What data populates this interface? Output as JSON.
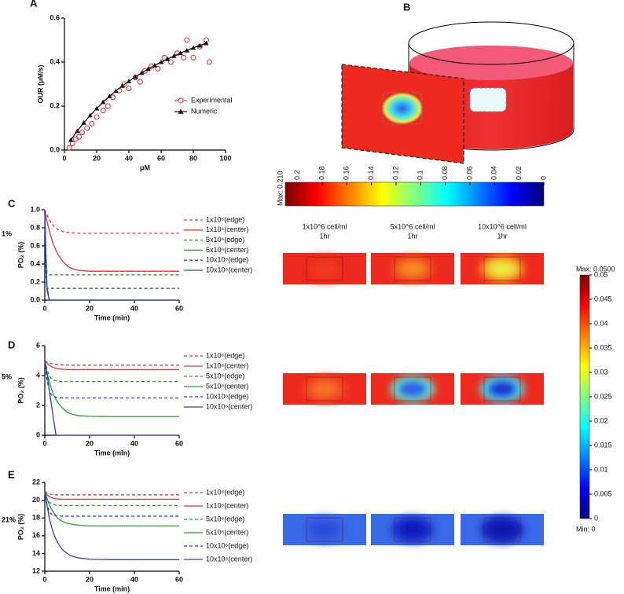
{
  "chart_data": [
    {
      "type": "scatter",
      "panel_label": "A",
      "xlabel": "μM",
      "ylabel": "OUR (μM/s)",
      "xlim": [
        0,
        100
      ],
      "xticks": [
        0,
        20,
        40,
        60,
        80,
        100
      ],
      "ylim": [
        0,
        0.6
      ],
      "yticks": [
        {
          "value": 0,
          "label": "0.0"
        },
        0.2,
        0.4,
        0.6
      ],
      "series": [
        {
          "name": "Experimental",
          "color": "#e8333a",
          "style": "markers",
          "marker": "circle",
          "x": [
            3,
            5,
            7,
            9,
            11,
            14,
            17,
            20,
            24,
            27,
            30,
            34,
            37,
            40,
            44,
            47,
            50,
            54,
            58,
            62,
            66,
            70,
            74,
            76,
            80,
            84,
            88,
            90
          ],
          "values": [
            0.01,
            0.03,
            0.05,
            0.06,
            0.08,
            0.1,
            0.12,
            0.15,
            0.18,
            0.2,
            0.24,
            0.27,
            0.3,
            0.28,
            0.33,
            0.31,
            0.36,
            0.38,
            0.37,
            0.42,
            0.4,
            0.44,
            0.42,
            0.5,
            0.42,
            0.47,
            0.5,
            0.4
          ]
        },
        {
          "name": "Numeric",
          "color": "#111111",
          "style": "line+markers",
          "marker": "triangle",
          "x": [
            4,
            8,
            12,
            16,
            20,
            24,
            28,
            32,
            36,
            40,
            44,
            48,
            52,
            56,
            60,
            64,
            68,
            72,
            76,
            80,
            84,
            88
          ],
          "values": [
            0.046,
            0.087,
            0.124,
            0.158,
            0.189,
            0.218,
            0.245,
            0.269,
            0.292,
            0.313,
            0.333,
            0.351,
            0.369,
            0.385,
            0.4,
            0.414,
            0.428,
            0.441,
            0.453,
            0.465,
            0.475,
            0.486
          ]
        }
      ]
    },
    {
      "type": "line",
      "panel_label": "C",
      "side_label": "1%",
      "xlabel": "Time (min)",
      "ylabel": "PO₂ (%)",
      "xlim": [
        0,
        60
      ],
      "xticks": [
        0,
        20,
        40,
        60
      ],
      "ylim": [
        0,
        1
      ],
      "yticks": [
        {
          "value": 0,
          "label": "0.0"
        },
        0.2,
        0.4,
        0.6,
        0.8,
        {
          "value": 1,
          "label": "1.0"
        }
      ],
      "x": [
        0,
        0.5,
        1,
        2,
        3,
        4,
        5,
        6,
        8,
        10,
        12,
        15,
        20,
        30,
        40,
        50,
        60
      ],
      "series": [
        {
          "name": "1x10⁶(edge)",
          "color": "#e8333a",
          "dashed": true,
          "values": [
            1,
            0.97,
            0.94,
            0.89,
            0.85,
            0.82,
            0.8,
            0.78,
            0.76,
            0.75,
            0.745,
            0.74,
            0.74,
            0.74,
            0.74,
            0.74,
            0.74
          ]
        },
        {
          "name": "1x10⁶(center)",
          "color": "#e8333a",
          "dashed": false,
          "values": [
            1,
            0.93,
            0.87,
            0.77,
            0.68,
            0.61,
            0.55,
            0.5,
            0.43,
            0.38,
            0.35,
            0.33,
            0.32,
            0.32,
            0.32,
            0.32,
            0.32
          ]
        },
        {
          "name": "5x10⁶(edge)",
          "color": "#2ca02c",
          "dashed": true,
          "values": [
            1,
            0.5,
            0.3,
            0.28,
            0.28,
            0.28,
            0.28,
            0.28,
            0.28,
            0.28,
            0.28,
            0.28,
            0.28,
            0.28,
            0.28,
            0.28,
            0.28
          ]
        },
        {
          "name": "5x10⁶(center)",
          "color": "#2ca02c",
          "dashed": false,
          "values": [
            1,
            0.4,
            0.1,
            0,
            0,
            0,
            0,
            0,
            0,
            0,
            0,
            0,
            0,
            0,
            0,
            0,
            0
          ]
        },
        {
          "name": "10x10⁶(edge)",
          "color": "#2a3fcf",
          "dashed": true,
          "values": [
            1,
            0.3,
            0.13,
            0.13,
            0.13,
            0.13,
            0.13,
            0.13,
            0.13,
            0.13,
            0.13,
            0.13,
            0.13,
            0.13,
            0.13,
            0.13,
            0.13
          ]
        },
        {
          "name": "10x10⁶(center)",
          "color": "#2a3fcf",
          "dashed": false,
          "values": [
            1,
            0.5,
            0.15,
            0,
            0,
            0,
            0,
            0,
            0,
            0,
            0,
            0,
            0,
            0,
            0,
            0,
            0
          ]
        }
      ]
    },
    {
      "type": "line",
      "panel_label": "D",
      "side_label": "5%",
      "xlabel": "Time (min)",
      "ylabel": "PO₂ (%)",
      "xlim": [
        0,
        60
      ],
      "xticks": [
        0,
        20,
        40,
        60
      ],
      "ylim": [
        0,
        6
      ],
      "yticks": [
        0,
        2,
        4,
        6
      ],
      "x": [
        0,
        0.5,
        1,
        2,
        3,
        4,
        5,
        6,
        8,
        10,
        12,
        15,
        20,
        30,
        40,
        50,
        60
      ],
      "series": [
        {
          "name": "1x10⁶(edge)",
          "color": "#e8333a",
          "dashed": true,
          "values": [
            5,
            4.95,
            4.9,
            4.85,
            4.8,
            4.77,
            4.75,
            4.73,
            4.72,
            4.71,
            4.7,
            4.7,
            4.7,
            4.7,
            4.7,
            4.7,
            4.7
          ]
        },
        {
          "name": "1x10⁶(center)",
          "color": "#e8333a",
          "dashed": false,
          "values": [
            5,
            4.9,
            4.82,
            4.7,
            4.6,
            4.53,
            4.48,
            4.45,
            4.42,
            4.4,
            4.4,
            4.4,
            4.4,
            4.4,
            4.4,
            4.4,
            4.4
          ]
        },
        {
          "name": "5x10⁶(edge)",
          "color": "#2ca02c",
          "dashed": true,
          "values": [
            5,
            4.7,
            4.4,
            4,
            3.8,
            3.7,
            3.65,
            3.62,
            3.6,
            3.6,
            3.6,
            3.6,
            3.6,
            3.6,
            3.6,
            3.6,
            3.6
          ]
        },
        {
          "name": "5x10⁶(center)",
          "color": "#2ca02c",
          "dashed": false,
          "values": [
            5,
            4.6,
            4.2,
            3.6,
            3.1,
            2.7,
            2.4,
            2.15,
            1.8,
            1.55,
            1.42,
            1.32,
            1.27,
            1.25,
            1.25,
            1.25,
            1.25
          ]
        },
        {
          "name": "10x10⁶(edge)",
          "color": "#2a3fcf",
          "dashed": true,
          "values": [
            5,
            4.3,
            3.7,
            3,
            2.7,
            2.6,
            2.55,
            2.52,
            2.5,
            2.5,
            2.5,
            2.5,
            2.5,
            2.5,
            2.5,
            2.5,
            2.5
          ]
        },
        {
          "name": "10x10⁶(center)",
          "color": "#2a3fcf",
          "dashed": false,
          "values": [
            5,
            4.6,
            4.1,
            3,
            2,
            1,
            0,
            0,
            0,
            0,
            0,
            0,
            0,
            0,
            0,
            0,
            0
          ]
        }
      ]
    },
    {
      "type": "line",
      "panel_label": "E",
      "side_label": "21%",
      "xlabel": "Time (min)",
      "ylabel": "PO₂ (%)",
      "xlim": [
        0,
        60
      ],
      "xticks": [
        0,
        20,
        40,
        60
      ],
      "ylim": [
        12,
        22
      ],
      "yticks": [
        12,
        14,
        16,
        18,
        20,
        22
      ],
      "x": [
        0,
        0.5,
        1,
        2,
        3,
        4,
        5,
        6,
        8,
        10,
        12,
        15,
        20,
        30,
        40,
        50,
        60
      ],
      "series": [
        {
          "name": "1x10⁶(edge)",
          "color": "#e8333a",
          "dashed": true,
          "values": [
            21,
            20.9,
            20.8,
            20.7,
            20.65,
            20.62,
            20.6,
            20.6,
            20.6,
            20.6,
            20.6,
            20.6,
            20.6,
            20.6,
            20.6,
            20.6,
            20.6
          ]
        },
        {
          "name": "1x10⁶(center)",
          "color": "#e8333a",
          "dashed": false,
          "values": [
            21,
            20.8,
            20.6,
            20.4,
            20.3,
            20.2,
            20.15,
            20.12,
            20.1,
            20.1,
            20.1,
            20.1,
            20.1,
            20.1,
            20.1,
            20.1,
            20.1
          ]
        },
        {
          "name": "5x10⁶(edge)",
          "color": "#2ca02c",
          "dashed": true,
          "values": [
            21,
            20.6,
            20.2,
            19.8,
            19.6,
            19.5,
            19.45,
            19.42,
            19.4,
            19.4,
            19.4,
            19.4,
            19.4,
            19.4,
            19.4,
            19.4,
            19.4
          ]
        },
        {
          "name": "5x10⁶(center)",
          "color": "#2ca02c",
          "dashed": false,
          "values": [
            21,
            20.6,
            20.2,
            19.5,
            19,
            18.6,
            18.2,
            17.9,
            17.6,
            17.4,
            17.3,
            17.2,
            17.1,
            17.1,
            17.1,
            17.1,
            17.1
          ]
        },
        {
          "name": "10x10⁶(edge)",
          "color": "#2a3fcf",
          "dashed": true,
          "values": [
            21,
            20.2,
            19.5,
            18.7,
            18.4,
            18.3,
            18.25,
            18.22,
            18.2,
            18.2,
            18.2,
            18.2,
            18.2,
            18.2,
            18.2,
            18.2,
            18.2
          ]
        },
        {
          "name": "10x10⁶(center)",
          "color": "#2a3fcf",
          "dashed": false,
          "values": [
            21,
            20.2,
            19.4,
            18,
            17,
            16.2,
            15.6,
            15.1,
            14.4,
            14,
            13.7,
            13.5,
            13.35,
            13.3,
            13.3,
            13.3,
            13.3
          ]
        }
      ]
    }
  ],
  "panel_b": {
    "panel_label": "B"
  },
  "colorbar_top": {
    "max_label": "Max: 0.210",
    "lim": [
      0.21,
      0
    ],
    "ticks": [
      0.2,
      0.18,
      0.16,
      0.14,
      0.12,
      0.1,
      0.08,
      0.06,
      0.04,
      0.02,
      0
    ],
    "colors": [
      "#7a0000",
      "#ff0000",
      "#ff8000",
      "#ffff00",
      "#80ff80",
      "#00ffff",
      "#0080ff",
      "#0000ff",
      "#00007a"
    ]
  },
  "colorbar_right": {
    "max_label": "Max: 0.0500",
    "min_label": "Min: 0",
    "lim": [
      0,
      0.05
    ],
    "ticks": [
      0.05,
      0.045,
      0.04,
      0.035,
      0.03,
      0.025,
      0.02,
      0.015,
      0.01,
      0.005,
      0
    ],
    "colors": [
      "#7a0000",
      "#ff0000",
      "#ff8000",
      "#ffff00",
      "#80ff80",
      "#00ffff",
      "#0080ff",
      "#0000ff",
      "#00007a"
    ]
  },
  "heatmaps": {
    "columns": [
      {
        "line1": "1x10^6 cell/ml",
        "line2": "1hr"
      },
      {
        "line1": "5x10^6 cell/ml",
        "line2": "1hr"
      },
      {
        "line1": "10x10^6 cell/ml",
        "line2": "1hr"
      }
    ],
    "rows": [
      [
        {
          "bg": "#ee2a1e",
          "ring": "#ee2a1e",
          "core": "#ef3a1e"
        },
        {
          "bg": "#ee2a1e",
          "ring": "#f0501e",
          "core": "#f58a22"
        },
        {
          "bg": "#ee2a1e",
          "ring": "#f5a020",
          "core": "#e8ee40"
        }
      ],
      [
        {
          "bg": "#ee2a1e",
          "ring": "#f2461e",
          "core": "#f5722a"
        },
        {
          "bg": "#ee2a1e",
          "ring": "#60f0d0",
          "core": "#2a5ce8"
        },
        {
          "bg": "#ee2a1e",
          "ring": "#40e8f0",
          "core": "#1a32d0"
        }
      ],
      [
        {
          "bg": "#3a6ae8",
          "ring": "#3560e4",
          "core": "#2a48dc"
        },
        {
          "bg": "#3a6ae8",
          "ring": "#1a38d0",
          "core": "#0a18b8"
        },
        {
          "bg": "#3a6ae8",
          "ring": "#1228c4",
          "core": "#0814a8"
        }
      ]
    ]
  }
}
